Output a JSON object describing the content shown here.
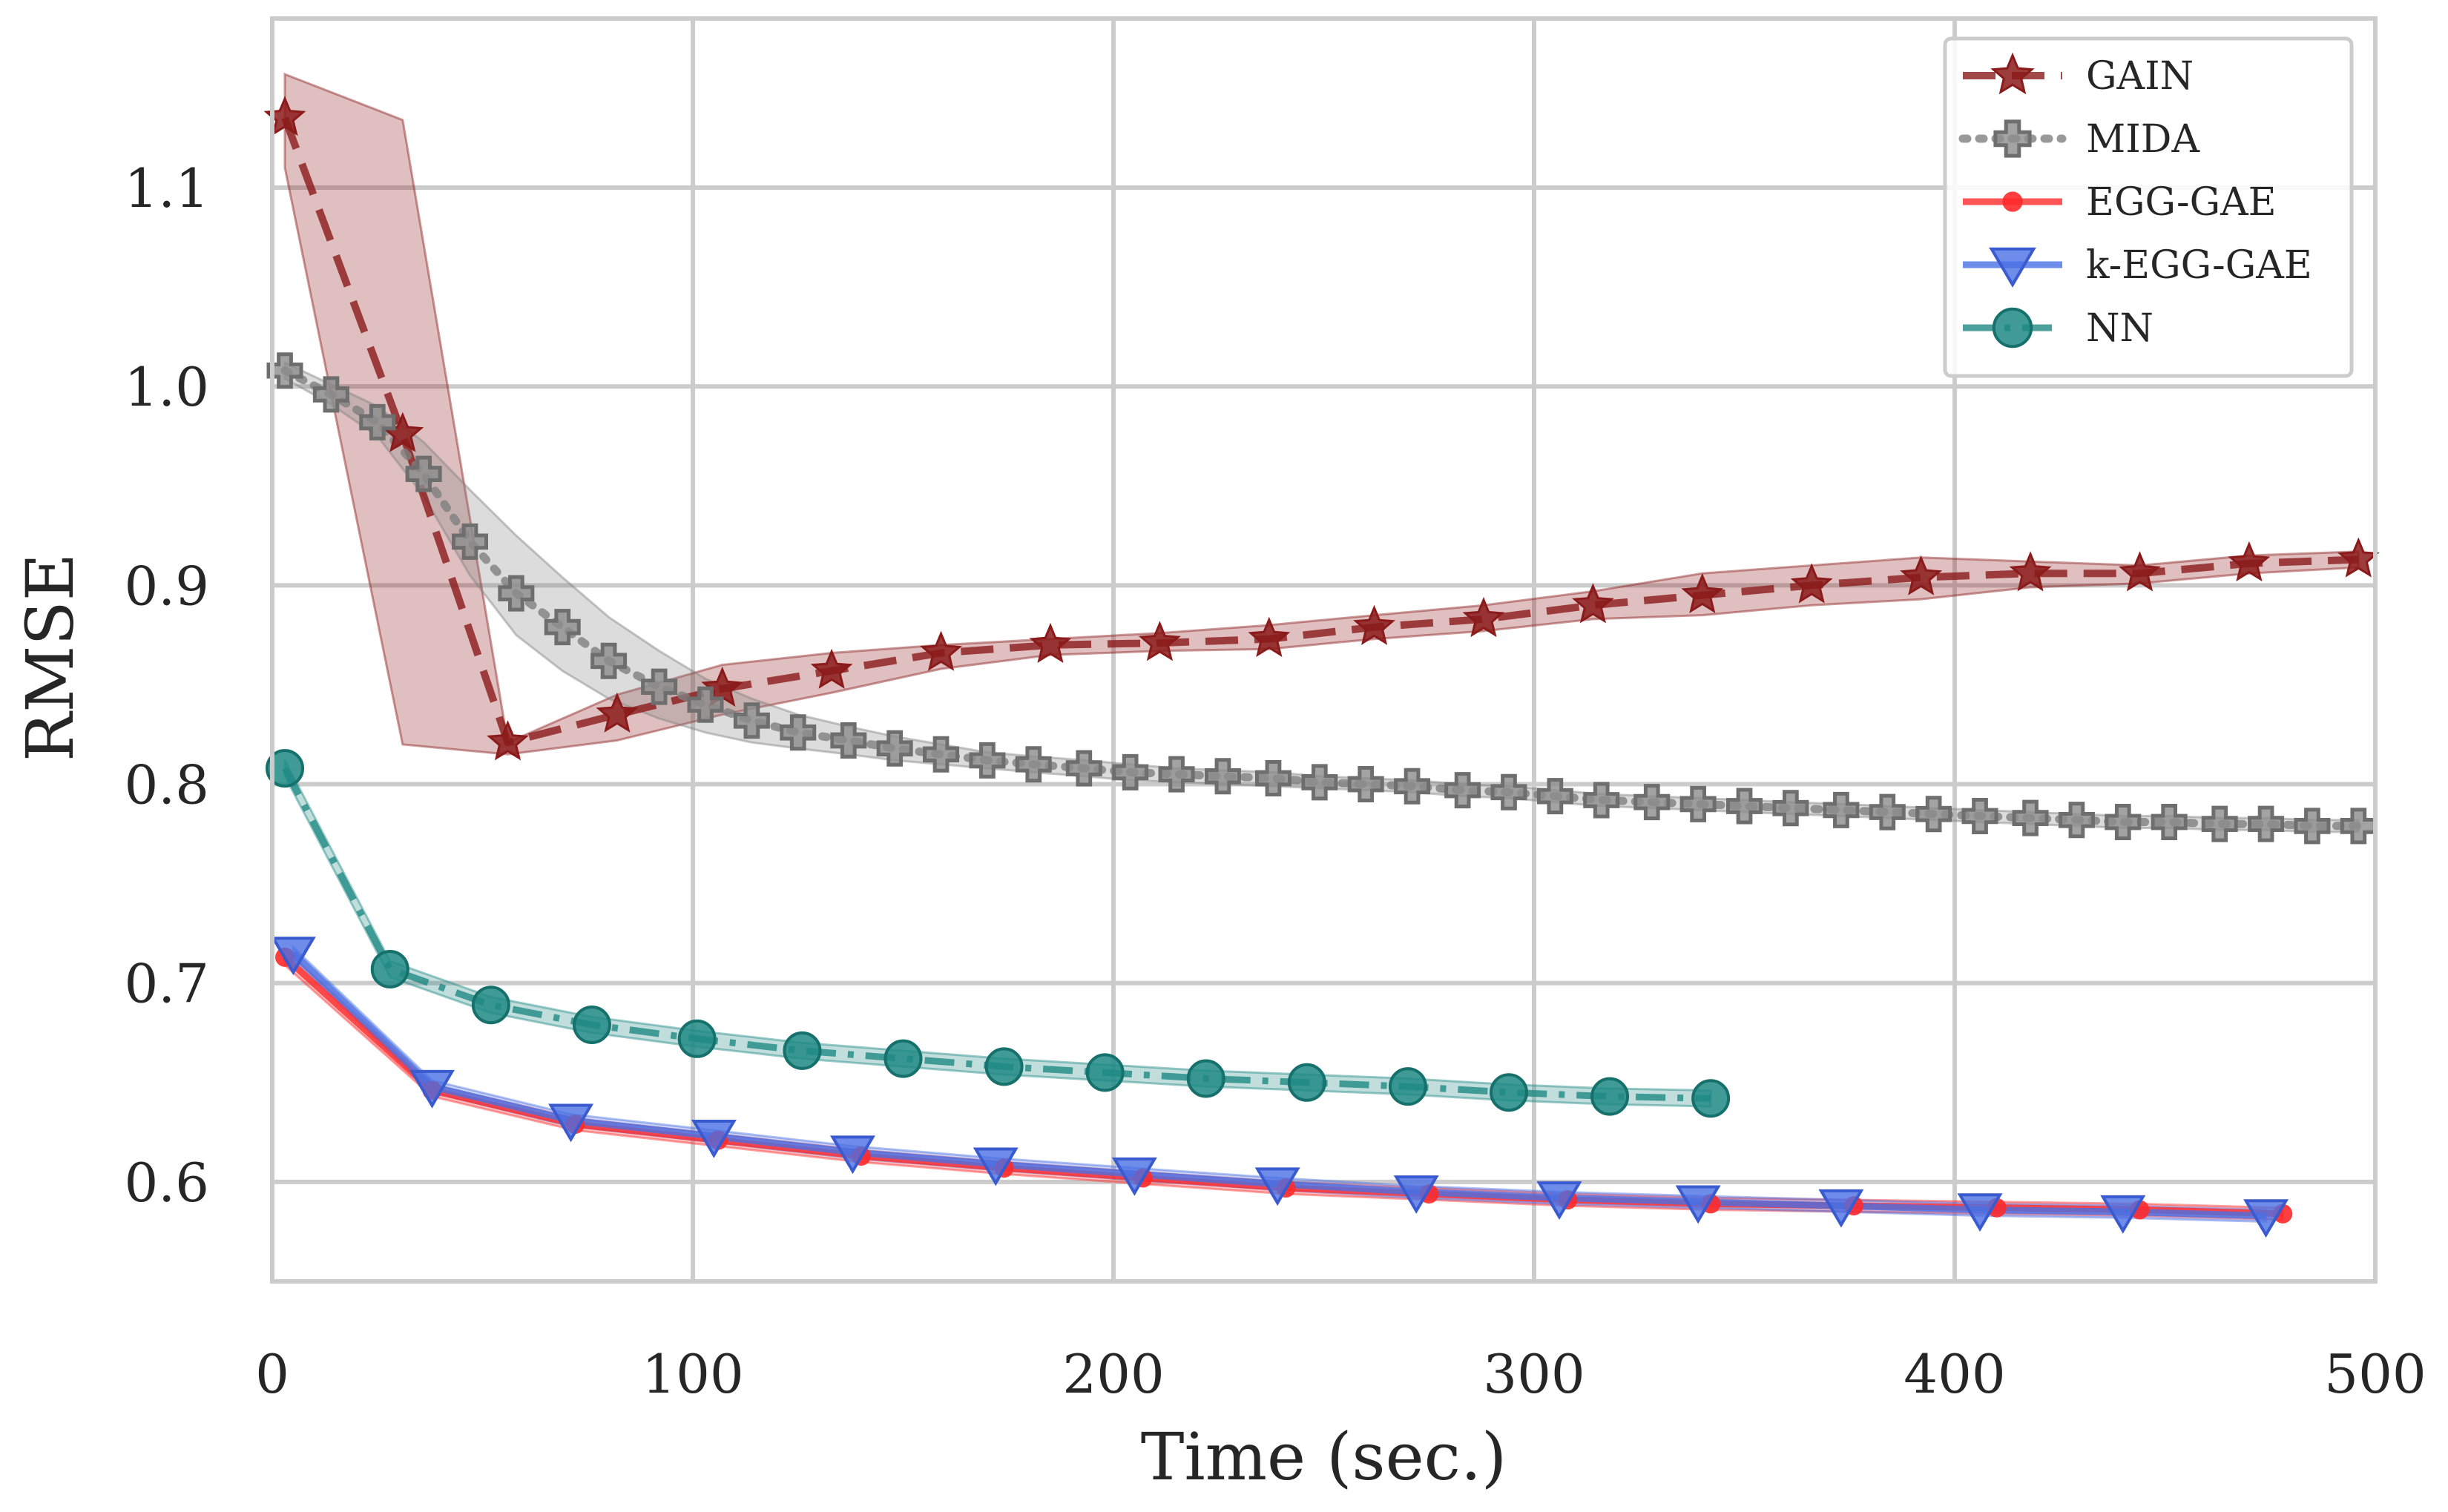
{
  "chart_data": {
    "type": "line",
    "title": "",
    "xlabel": "Time (sec.)",
    "ylabel": "RMSE",
    "xlim": [
      0,
      500
    ],
    "ylim": [
      0.55,
      1.185
    ],
    "grid": true,
    "legend_position": "top-right",
    "xticks": [
      0,
      100,
      200,
      300,
      400,
      500
    ],
    "xtick_labels": [
      "0",
      "100",
      "200",
      "300",
      "400",
      "500"
    ],
    "yticks": [
      0.6,
      0.7,
      0.8,
      0.9,
      1.0,
      1.1
    ],
    "ytick_labels": [
      "0.6",
      "0.7",
      "0.8",
      "0.9",
      "1.0",
      "1.1"
    ],
    "series": [
      {
        "name": "GAIN",
        "color": "#8b1a1a",
        "marker": "star",
        "dash": "dashed",
        "x": [
          3,
          31,
          56,
          82,
          107,
          133,
          159,
          185,
          211,
          237,
          262,
          288,
          314,
          340,
          366,
          392,
          418,
          444,
          470,
          496
        ],
        "y": [
          1.135,
          0.976,
          0.821,
          0.835,
          0.848,
          0.857,
          0.866,
          0.87,
          0.871,
          0.873,
          0.879,
          0.883,
          0.89,
          0.895,
          0.9,
          0.904,
          0.906,
          0.906,
          0.911,
          0.913
        ],
        "band_upper": [
          1.157,
          1.134,
          0.821,
          0.845,
          0.86,
          0.866,
          0.87,
          0.873,
          0.876,
          0.88,
          0.885,
          0.89,
          0.897,
          0.906,
          0.91,
          0.914,
          0.912,
          0.91,
          0.915,
          0.917
        ],
        "band_lower": [
          1.11,
          0.82,
          0.815,
          0.822,
          0.835,
          0.846,
          0.858,
          0.865,
          0.867,
          0.868,
          0.873,
          0.877,
          0.883,
          0.885,
          0.89,
          0.893,
          0.899,
          0.901,
          0.906,
          0.909
        ]
      },
      {
        "name": "MIDA",
        "color": "#808080",
        "marker": "plus",
        "dash": "dotted",
        "x": [
          3,
          14,
          25,
          36,
          47,
          58,
          69,
          80,
          92,
          103,
          114,
          125,
          137,
          148,
          159,
          170,
          181,
          193,
          204,
          215,
          226,
          238,
          249,
          260,
          271,
          283,
          294,
          305,
          316,
          328,
          339,
          350,
          361,
          373,
          384,
          395,
          406,
          418,
          429,
          440,
          451,
          463,
          474,
          485,
          496
        ],
        "y": [
          1.008,
          0.996,
          0.982,
          0.956,
          0.922,
          0.896,
          0.879,
          0.862,
          0.849,
          0.84,
          0.832,
          0.826,
          0.822,
          0.818,
          0.815,
          0.812,
          0.81,
          0.808,
          0.806,
          0.805,
          0.804,
          0.803,
          0.801,
          0.8,
          0.799,
          0.797,
          0.796,
          0.794,
          0.792,
          0.791,
          0.79,
          0.789,
          0.788,
          0.787,
          0.786,
          0.785,
          0.784,
          0.783,
          0.782,
          0.781,
          0.781,
          0.78,
          0.78,
          0.779,
          0.779
        ],
        "band_upper": [
          1.012,
          1.001,
          0.99,
          0.972,
          0.948,
          0.925,
          0.904,
          0.884,
          0.867,
          0.853,
          0.843,
          0.835,
          0.829,
          0.824,
          0.82,
          0.816,
          0.814,
          0.812,
          0.81,
          0.808,
          0.807,
          0.806,
          0.804,
          0.803,
          0.802,
          0.8,
          0.799,
          0.797,
          0.795,
          0.794,
          0.793,
          0.792,
          0.791,
          0.79,
          0.789,
          0.788,
          0.787,
          0.786,
          0.785,
          0.784,
          0.784,
          0.783,
          0.783,
          0.782,
          0.782
        ],
        "band_lower": [
          1.004,
          0.991,
          0.975,
          0.945,
          0.905,
          0.875,
          0.857,
          0.843,
          0.833,
          0.826,
          0.821,
          0.818,
          0.815,
          0.812,
          0.81,
          0.808,
          0.806,
          0.804,
          0.802,
          0.801,
          0.8,
          0.799,
          0.798,
          0.797,
          0.796,
          0.794,
          0.793,
          0.791,
          0.789,
          0.788,
          0.787,
          0.786,
          0.785,
          0.784,
          0.783,
          0.782,
          0.781,
          0.78,
          0.779,
          0.778,
          0.778,
          0.777,
          0.777,
          0.776,
          0.776
        ]
      },
      {
        "name": "EGG-GAE",
        "color": "#ff2a2a",
        "marker": "circle-small",
        "dash": "solid",
        "x": [
          3,
          38,
          72,
          106,
          140,
          174,
          207,
          241,
          275,
          308,
          342,
          376,
          410,
          444,
          478
        ],
        "y": [
          0.713,
          0.646,
          0.629,
          0.621,
          0.613,
          0.607,
          0.602,
          0.597,
          0.594,
          0.591,
          0.589,
          0.588,
          0.587,
          0.586,
          0.584
        ],
        "band_upper": [
          0.717,
          0.649,
          0.632,
          0.624,
          0.616,
          0.61,
          0.605,
          0.6,
          0.597,
          0.594,
          0.592,
          0.591,
          0.59,
          0.589,
          0.587
        ],
        "band_lower": [
          0.709,
          0.643,
          0.626,
          0.618,
          0.61,
          0.604,
          0.599,
          0.594,
          0.591,
          0.588,
          0.586,
          0.585,
          0.584,
          0.583,
          0.581
        ]
      },
      {
        "name": "k-EGG-GAE",
        "color": "#4a6fe3",
        "marker": "triangle-down",
        "dash": "solid",
        "x": [
          5,
          38,
          71,
          105,
          138,
          172,
          205,
          239,
          272,
          306,
          339,
          373,
          406,
          440,
          474
        ],
        "y": [
          0.715,
          0.648,
          0.631,
          0.623,
          0.615,
          0.609,
          0.604,
          0.599,
          0.595,
          0.592,
          0.59,
          0.588,
          0.586,
          0.585,
          0.583
        ],
        "band_upper": [
          0.718,
          0.651,
          0.634,
          0.626,
          0.618,
          0.612,
          0.607,
          0.602,
          0.598,
          0.595,
          0.593,
          0.591,
          0.589,
          0.588,
          0.586
        ],
        "band_lower": [
          0.712,
          0.645,
          0.628,
          0.62,
          0.612,
          0.606,
          0.601,
          0.596,
          0.592,
          0.589,
          0.587,
          0.585,
          0.583,
          0.582,
          0.58
        ]
      },
      {
        "name": "NN",
        "color": "#1f8a84",
        "marker": "circle",
        "dash": "dashdot",
        "x": [
          3,
          28,
          52,
          76,
          101,
          126,
          150,
          174,
          198,
          222,
          246,
          270,
          294,
          318,
          342
        ],
        "y": [
          0.808,
          0.707,
          0.689,
          0.679,
          0.672,
          0.666,
          0.662,
          0.658,
          0.655,
          0.652,
          0.65,
          0.648,
          0.645,
          0.643,
          0.642
        ],
        "band_upper": [
          0.812,
          0.711,
          0.693,
          0.683,
          0.676,
          0.67,
          0.666,
          0.662,
          0.659,
          0.656,
          0.654,
          0.652,
          0.649,
          0.647,
          0.646
        ],
        "band_lower": [
          0.804,
          0.703,
          0.685,
          0.675,
          0.668,
          0.662,
          0.658,
          0.654,
          0.651,
          0.648,
          0.646,
          0.644,
          0.641,
          0.639,
          0.638
        ]
      }
    ]
  }
}
